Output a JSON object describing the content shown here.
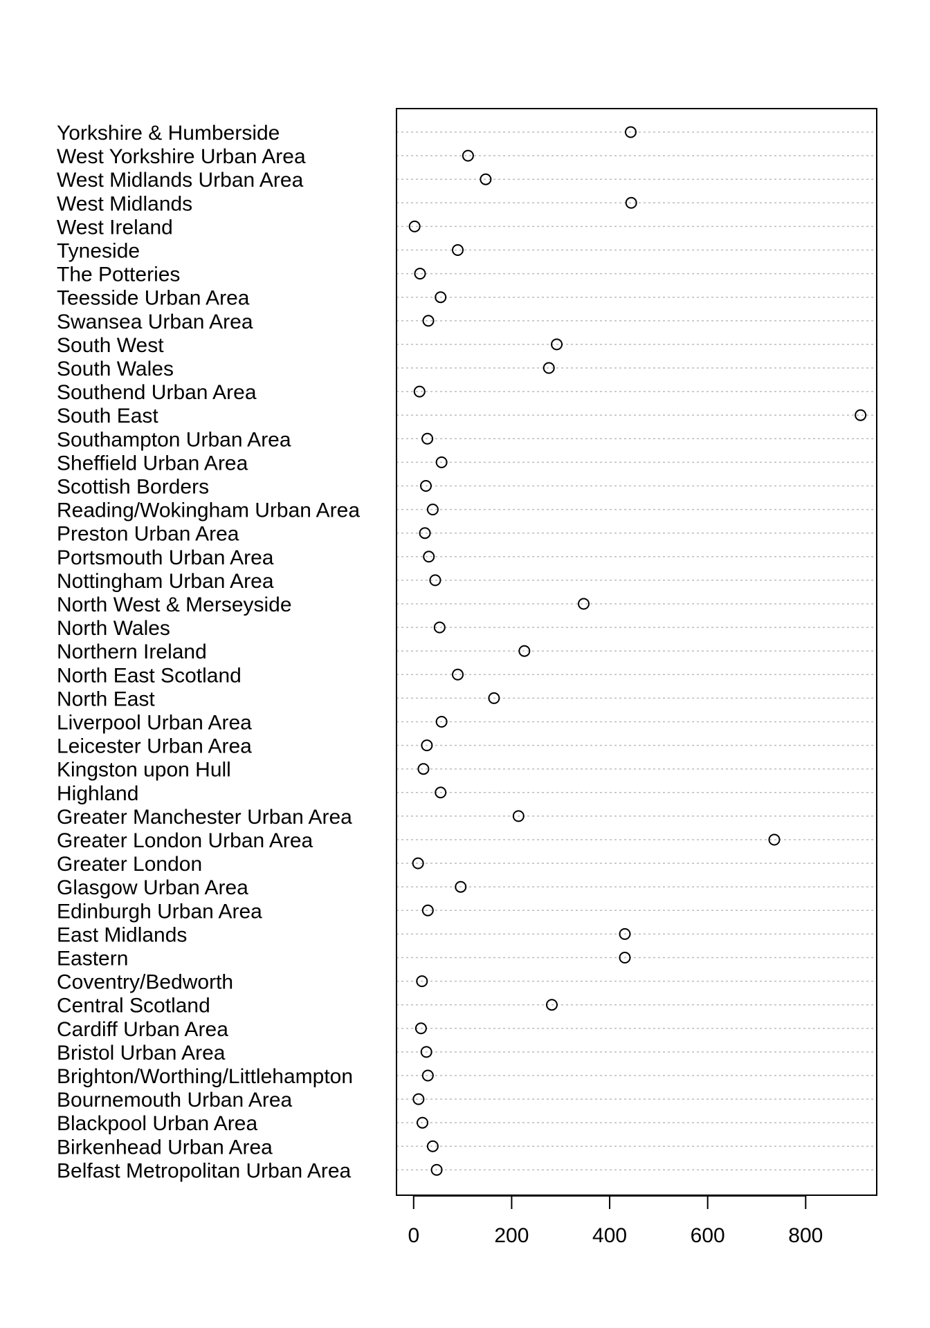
{
  "chart_data": {
    "type": "scatter",
    "subtype": "dotchart",
    "title": "",
    "xlabel": "",
    "ylabel": "",
    "xlim": [
      -35,
      945
    ],
    "xticks": [
      0,
      200,
      400,
      600,
      800
    ],
    "grid": true,
    "categories": [
      "Yorkshire & Humberside",
      "West Yorkshire Urban Area",
      "West Midlands Urban Area",
      "West Midlands",
      "West Ireland",
      "Tyneside",
      "The Potteries",
      "Teesside Urban Area",
      "Swansea Urban Area",
      "South West",
      "South Wales",
      "Southend Urban Area",
      "South East",
      "Southampton Urban Area",
      "Sheffield Urban Area",
      "Scottish Borders",
      "Reading/Wokingham Urban Area",
      "Preston Urban Area",
      "Portsmouth Urban Area",
      "Nottingham Urban Area",
      "North West & Merseyside",
      "North Wales",
      "Northern Ireland",
      "North East Scotland",
      "North East",
      "Liverpool Urban Area",
      "Leicester Urban Area",
      "Kingston upon Hull",
      "Highland",
      "Greater Manchester Urban Area",
      "Greater London Urban Area",
      "Greater London",
      "Glasgow Urban Area",
      "Edinburgh Urban Area",
      "East Midlands",
      "Eastern",
      "Coventry/Bedworth",
      "Central Scotland",
      "Cardiff Urban Area",
      "Bristol Urban Area",
      "Brighton/Worthing/Littlehampton",
      "Bournemouth Urban Area",
      "Blackpool Urban Area",
      "Birkenhead Urban Area",
      "Belfast Metropolitan Urban Area"
    ],
    "values": [
      443,
      111,
      147,
      444,
      2,
      90,
      13,
      55,
      30,
      292,
      276,
      12,
      912,
      28,
      57,
      25,
      39,
      23,
      31,
      44,
      347,
      53,
      226,
      90,
      164,
      57,
      27,
      20,
      55,
      214,
      736,
      9,
      96,
      29,
      431,
      431,
      17,
      282,
      15,
      26,
      29,
      10,
      18,
      39,
      47
    ]
  }
}
